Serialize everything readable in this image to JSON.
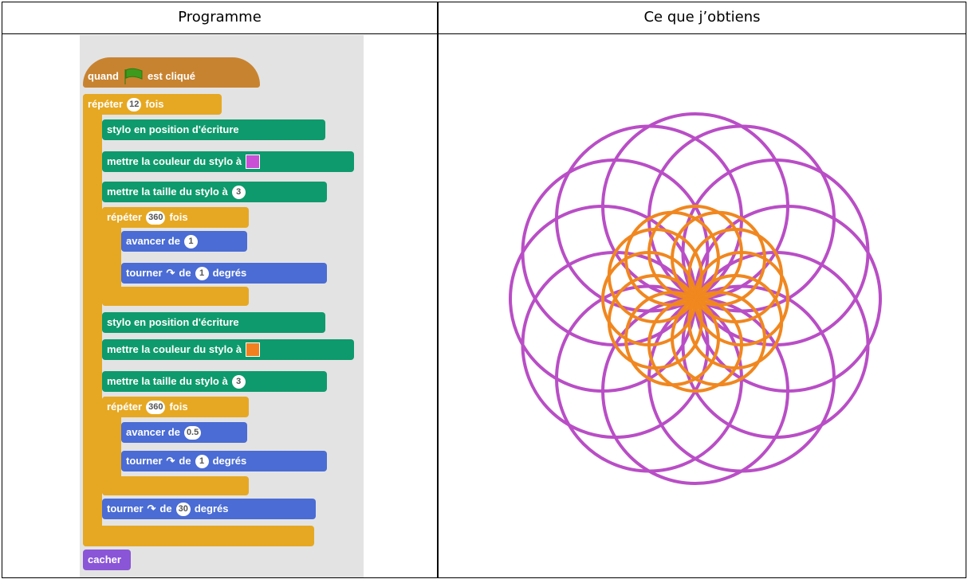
{
  "table": {
    "headers": [
      "Programme",
      "Ce que j’obtiens"
    ]
  },
  "program": {
    "blocks": [
      {
        "text": [
          "quand",
          "est cliqué"
        ]
      },
      {
        "text": [
          "répéter",
          "fois"
        ],
        "input": "12"
      },
      {
        "text": [
          "stylo en position d'écriture"
        ]
      },
      {
        "text": [
          "mettre la couleur du stylo à"
        ]
      },
      {
        "text": [
          "mettre la taille du stylo à"
        ],
        "input": "3"
      },
      {
        "text": [
          "répéter",
          "fois"
        ],
        "input": "360"
      },
      {
        "text": [
          "avancer de"
        ],
        "input": "1"
      },
      {
        "text": [
          "tourner",
          "de",
          "degrés"
        ],
        "input": "1"
      },
      {
        "text": [
          "stylo en position d'écriture"
        ]
      },
      {
        "text": [
          "mettre la couleur du stylo à"
        ]
      },
      {
        "text": [
          "mettre la taille du stylo à"
        ],
        "input": "3"
      },
      {
        "text": [
          "répéter",
          "fois"
        ],
        "input": "360"
      },
      {
        "text": [
          "avancer de"
        ],
        "input": "0.5"
      },
      {
        "text": [
          "tourner",
          "de",
          "degrés"
        ],
        "input": "1"
      },
      {
        "text": [
          "tourner",
          "de",
          "degrés"
        ],
        "input": "30"
      },
      {
        "text": [
          "cacher"
        ]
      }
    ]
  }
}
